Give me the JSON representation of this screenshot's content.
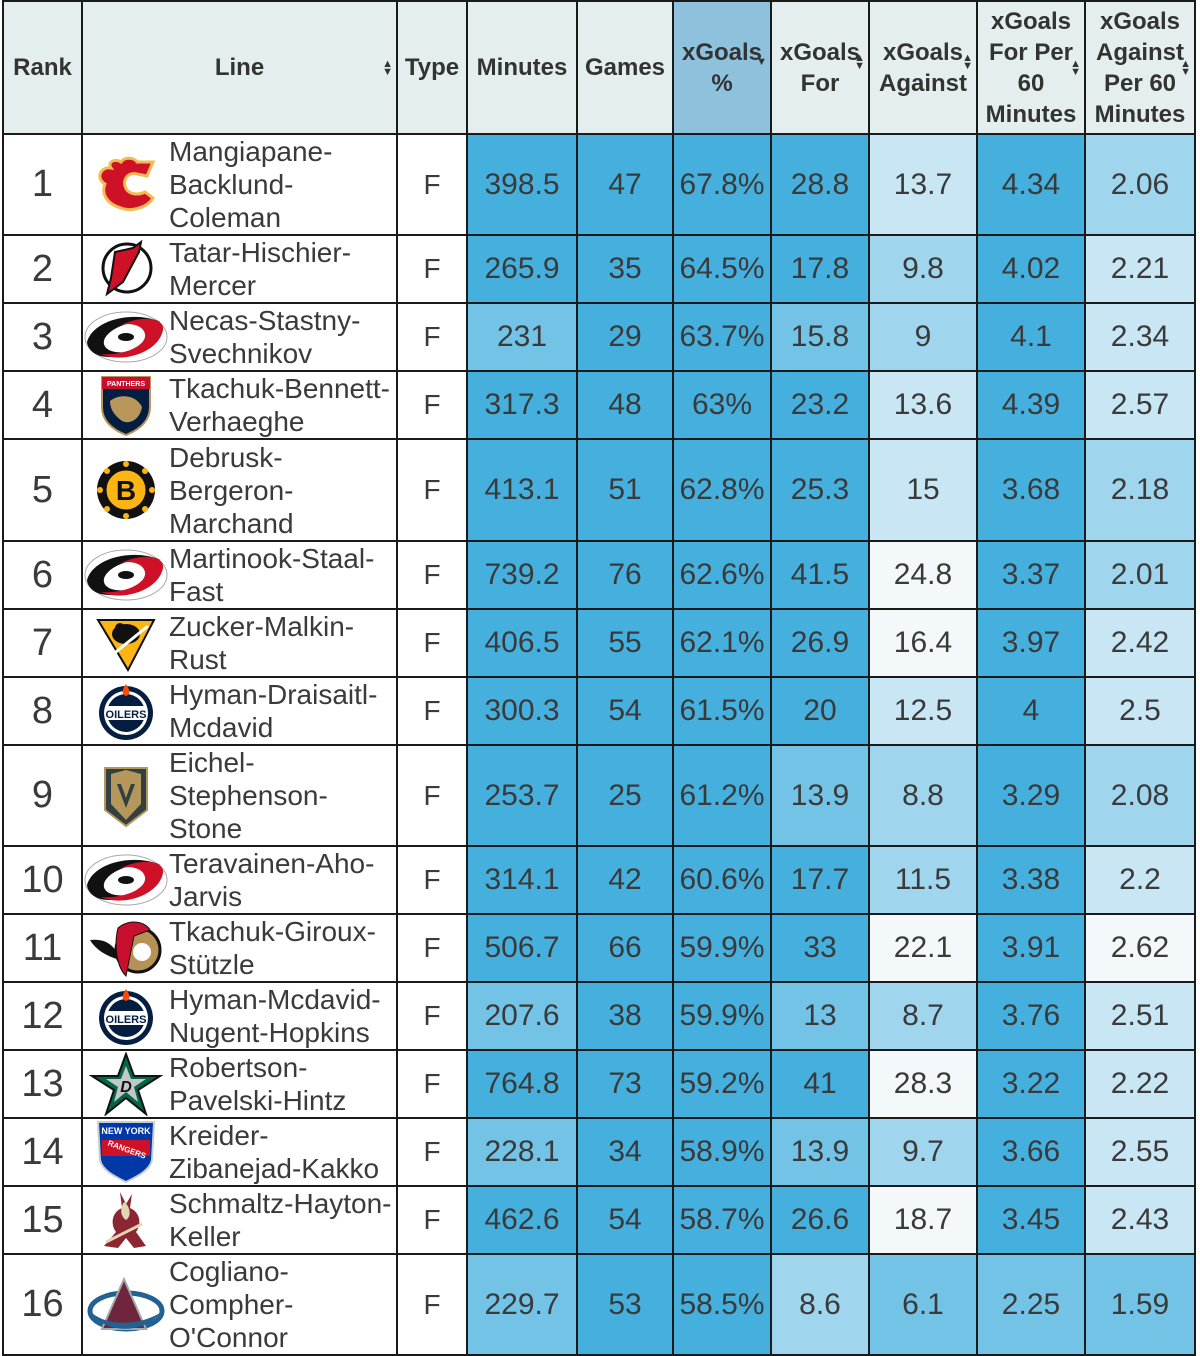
{
  "table": {
    "headers": {
      "rank": "Rank",
      "line": "Line",
      "type": "Type",
      "minutes": "Minutes",
      "games": "Games",
      "xg_pct": "xGoals %",
      "xg_for": "xGoals For",
      "xg_against": "xGoals Against",
      "xgf_60": "xGoals For Per 60 Minutes",
      "xga_60": "xGoals Against Per 60 Minutes"
    },
    "sorted_column": "xg_pct",
    "sort_direction": "descending",
    "colors": {
      "header_bg": "#e5eeee",
      "sorted_header_bg": "#8ec2dc",
      "scale": [
        "#f3f8fb",
        "#c9e6f4",
        "#a0d5ee",
        "#72c3e6",
        "#45b0de"
      ]
    },
    "rows": [
      {
        "rank": "1",
        "team_logo": "calgary-flames-logo",
        "line": "Mangiapane-Backlund-Coleman",
        "type": "F",
        "minutes": "398.5",
        "games": "47",
        "xg_pct": "67.8%",
        "xg_for": "28.8",
        "xg_against": "13.7",
        "xgf_60": "4.34",
        "xga_60": "2.06"
      },
      {
        "rank": "2",
        "team_logo": "new-jersey-devils-logo",
        "line": "Tatar-Hischier-Mercer",
        "type": "F",
        "minutes": "265.9",
        "games": "35",
        "xg_pct": "64.5%",
        "xg_for": "17.8",
        "xg_against": "9.8",
        "xgf_60": "4.02",
        "xga_60": "2.21"
      },
      {
        "rank": "3",
        "team_logo": "carolina-hurricanes-logo",
        "line": "Necas-Stastny-Svechnikov",
        "type": "F",
        "minutes": "231",
        "games": "29",
        "xg_pct": "63.7%",
        "xg_for": "15.8",
        "xg_against": "9",
        "xgf_60": "4.1",
        "xga_60": "2.34"
      },
      {
        "rank": "4",
        "team_logo": "florida-panthers-logo",
        "line": "Tkachuk-Bennett-Verhaeghe",
        "type": "F",
        "minutes": "317.3",
        "games": "48",
        "xg_pct": "63%",
        "xg_for": "23.2",
        "xg_against": "13.6",
        "xgf_60": "4.39",
        "xga_60": "2.57"
      },
      {
        "rank": "5",
        "team_logo": "boston-bruins-logo",
        "line": "Debrusk-Bergeron-Marchand",
        "type": "F",
        "minutes": "413.1",
        "games": "51",
        "xg_pct": "62.8%",
        "xg_for": "25.3",
        "xg_against": "15",
        "xgf_60": "3.68",
        "xga_60": "2.18"
      },
      {
        "rank": "6",
        "team_logo": "carolina-hurricanes-logo",
        "line": "Martinook-Staal-Fast",
        "type": "F",
        "minutes": "739.2",
        "games": "76",
        "xg_pct": "62.6%",
        "xg_for": "41.5",
        "xg_against": "24.8",
        "xgf_60": "3.37",
        "xga_60": "2.01"
      },
      {
        "rank": "7",
        "team_logo": "pittsburgh-penguins-logo",
        "line": "Zucker-Malkin-Rust",
        "type": "F",
        "minutes": "406.5",
        "games": "55",
        "xg_pct": "62.1%",
        "xg_for": "26.9",
        "xg_against": "16.4",
        "xgf_60": "3.97",
        "xga_60": "2.42"
      },
      {
        "rank": "8",
        "team_logo": "edmonton-oilers-logo",
        "line": "Hyman-Draisaitl-Mcdavid",
        "type": "F",
        "minutes": "300.3",
        "games": "54",
        "xg_pct": "61.5%",
        "xg_for": "20",
        "xg_against": "12.5",
        "xgf_60": "4",
        "xga_60": "2.5"
      },
      {
        "rank": "9",
        "team_logo": "vegas-golden-knights-logo",
        "line": "Eichel-Stephenson-Stone",
        "type": "F",
        "minutes": "253.7",
        "games": "25",
        "xg_pct": "61.2%",
        "xg_for": "13.9",
        "xg_against": "8.8",
        "xgf_60": "3.29",
        "xga_60": "2.08"
      },
      {
        "rank": "10",
        "team_logo": "carolina-hurricanes-logo",
        "line": "Teravainen-Aho-Jarvis",
        "type": "F",
        "minutes": "314.1",
        "games": "42",
        "xg_pct": "60.6%",
        "xg_for": "17.7",
        "xg_against": "11.5",
        "xgf_60": "3.38",
        "xga_60": "2.2"
      },
      {
        "rank": "11",
        "team_logo": "ottawa-senators-logo",
        "line": "Tkachuk-Giroux-Stützle",
        "type": "F",
        "minutes": "506.7",
        "games": "66",
        "xg_pct": "59.9%",
        "xg_for": "33",
        "xg_against": "22.1",
        "xgf_60": "3.91",
        "xga_60": "2.62"
      },
      {
        "rank": "12",
        "team_logo": "edmonton-oilers-logo",
        "line": "Hyman-Mcdavid-Nugent-Hopkins",
        "type": "F",
        "minutes": "207.6",
        "games": "38",
        "xg_pct": "59.9%",
        "xg_for": "13",
        "xg_against": "8.7",
        "xgf_60": "3.76",
        "xga_60": "2.51"
      },
      {
        "rank": "13",
        "team_logo": "dallas-stars-logo",
        "line": "Robertson-Pavelski-Hintz",
        "type": "F",
        "minutes": "764.8",
        "games": "73",
        "xg_pct": "59.2%",
        "xg_for": "41",
        "xg_against": "28.3",
        "xgf_60": "3.22",
        "xga_60": "2.22"
      },
      {
        "rank": "14",
        "team_logo": "new-york-rangers-logo",
        "line": "Kreider-Zibanejad-Kakko",
        "type": "F",
        "minutes": "228.1",
        "games": "34",
        "xg_pct": "58.9%",
        "xg_for": "13.9",
        "xg_against": "9.7",
        "xgf_60": "3.66",
        "xga_60": "2.55"
      },
      {
        "rank": "15",
        "team_logo": "arizona-coyotes-logo",
        "line": "Schmaltz-Hayton-Keller",
        "type": "F",
        "minutes": "462.6",
        "games": "54",
        "xg_pct": "58.7%",
        "xg_for": "26.6",
        "xg_against": "18.7",
        "xgf_60": "3.45",
        "xga_60": "2.43"
      },
      {
        "rank": "16",
        "team_logo": "colorado-avalanche-logo",
        "line": "Cogliano-Compher-O'Connor",
        "type": "F",
        "minutes": "229.7",
        "games": "53",
        "xg_pct": "58.5%",
        "xg_for": "8.6",
        "xg_against": "6.1",
        "xgf_60": "2.25",
        "xga_60": "1.59"
      }
    ]
  }
}
